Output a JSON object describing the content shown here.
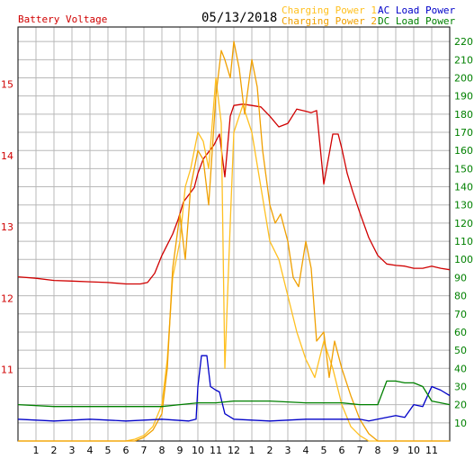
{
  "chart_data": {
    "type": "line",
    "title": "05/13/2018",
    "left_axis_label": "Battery Voltage",
    "right_axis_labels": [
      "Charging Power 1",
      "Charging Power 2",
      "AC Load Power",
      "DC Load Power"
    ],
    "x_tick_labels": [
      "1",
      "2",
      "3",
      "4",
      "5",
      "6",
      "7",
      "8",
      "9",
      "10",
      "11",
      "12",
      "1",
      "2",
      "3",
      "4",
      "5",
      "6",
      "7",
      "8",
      "9",
      "10",
      "11"
    ],
    "x_range": [
      0,
      24
    ],
    "y_left_ticks": [
      "11",
      "12",
      "13",
      "14",
      "15"
    ],
    "y_left_range": [
      10.0,
      15.8
    ],
    "y_right_ticks": [
      "10",
      "20",
      "30",
      "40",
      "50",
      "60",
      "70",
      "80",
      "90",
      "100",
      "110",
      "120",
      "130",
      "140",
      "150",
      "160",
      "170",
      "180",
      "190",
      "200",
      "210",
      "220"
    ],
    "y_right_range": [
      0,
      228
    ],
    "grid": true,
    "colors": {
      "battery": "#d00000",
      "charging1": "#ffc020",
      "charging2": "#f0a000",
      "ac_load": "#0000c8",
      "dc_load": "#008000",
      "right_axis": "#008000",
      "left_axis": "#d00000",
      "grid": "#b8b8b8"
    },
    "series": [
      {
        "name": "Battery Voltage",
        "axis": "left",
        "color": "#d00000",
        "x": [
          0,
          1,
          2,
          3,
          4,
          5,
          6,
          6.8,
          7.2,
          7.6,
          8,
          8.3,
          8.6,
          8.9,
          9.2,
          9.5,
          9.8,
          10,
          10.3,
          10.6,
          10.9,
          11.2,
          11.5,
          11.8,
          12,
          12.5,
          13,
          13.5,
          14,
          14.5,
          15,
          15.5,
          16,
          16.3,
          16.6,
          17,
          17.5,
          17.8,
          18,
          18.3,
          18.6,
          19,
          19.5,
          20,
          20.5,
          21,
          21.5,
          22,
          22.5,
          23,
          23.5,
          24
        ],
        "y": [
          12.3,
          12.28,
          12.25,
          12.24,
          12.23,
          12.22,
          12.2,
          12.2,
          12.22,
          12.35,
          12.6,
          12.75,
          12.9,
          13.1,
          13.35,
          13.45,
          13.55,
          13.75,
          13.95,
          14.05,
          14.15,
          14.3,
          13.7,
          14.55,
          14.7,
          14.72,
          14.7,
          14.68,
          14.55,
          14.4,
          14.45,
          14.65,
          14.62,
          14.6,
          14.63,
          13.6,
          14.3,
          14.3,
          14.1,
          13.75,
          13.5,
          13.2,
          12.85,
          12.6,
          12.48,
          12.46,
          12.45,
          12.42,
          12.42,
          12.45,
          12.42,
          12.4
        ]
      },
      {
        "name": "Charging Power 1",
        "axis": "right",
        "color": "#ffc020",
        "x": [
          0,
          6,
          6.5,
          7,
          7.5,
          8,
          8.3,
          8.6,
          9,
          9.3,
          9.6,
          10,
          10.3,
          10.6,
          11,
          11.3,
          11.5,
          11.8,
          12,
          12.5,
          13,
          13.5,
          14,
          14.5,
          15,
          15.5,
          16,
          16.5,
          17,
          17.5,
          18,
          18.5,
          19,
          19.5,
          24
        ],
        "y": [
          0,
          0,
          1,
          3,
          8,
          20,
          45,
          90,
          110,
          140,
          150,
          170,
          165,
          150,
          200,
          175,
          40,
          120,
          170,
          185,
          170,
          140,
          110,
          100,
          80,
          60,
          45,
          35,
          55,
          40,
          20,
          8,
          3,
          0,
          0
        ]
      },
      {
        "name": "Charging Power 2",
        "axis": "right",
        "color": "#f0a000",
        "x": [
          0,
          6.5,
          7,
          7.5,
          8,
          8.3,
          8.6,
          9,
          9.3,
          9.6,
          10,
          10.3,
          10.6,
          11,
          11.3,
          11.5,
          11.8,
          12,
          12.3,
          12.6,
          13,
          13.3,
          13.6,
          14,
          14.3,
          14.6,
          15,
          15.3,
          15.6,
          16,
          16.3,
          16.6,
          17,
          17.3,
          17.6,
          18,
          18.5,
          19,
          19.5,
          20,
          24
        ],
        "y": [
          0,
          0,
          2,
          6,
          15,
          40,
          95,
          125,
          100,
          140,
          160,
          155,
          130,
          190,
          215,
          210,
          200,
          220,
          205,
          180,
          210,
          195,
          160,
          130,
          120,
          125,
          110,
          90,
          85,
          110,
          95,
          55,
          60,
          35,
          55,
          40,
          25,
          12,
          4,
          0,
          0
        ]
      },
      {
        "name": "AC Load Power",
        "axis": "right",
        "color": "#0000c8",
        "x": [
          0,
          2,
          4,
          6,
          8,
          9.5,
          9.9,
          10,
          10.2,
          10.5,
          10.7,
          11,
          11.2,
          11.5,
          12,
          14,
          16,
          18,
          19,
          19.5,
          20,
          20.5,
          21,
          21.5,
          22,
          22.5,
          23,
          23.5,
          24
        ],
        "y": [
          12,
          11,
          12,
          11,
          12,
          11,
          12,
          30,
          47,
          47,
          30,
          28,
          27,
          15,
          12,
          11,
          12,
          12,
          12,
          11,
          12,
          13,
          14,
          13,
          20,
          19,
          30,
          28,
          25
        ]
      },
      {
        "name": "DC Load Power",
        "axis": "right",
        "color": "#008000",
        "x": [
          0,
          2,
          4,
          6,
          8,
          9,
          10,
          11,
          12,
          14,
          16,
          18,
          19,
          19.5,
          20,
          20.5,
          21,
          21.5,
          22,
          22.5,
          23,
          23.5,
          24
        ],
        "y": [
          20,
          19,
          19,
          19,
          19,
          20,
          21,
          21,
          22,
          22,
          21,
          21,
          20,
          20,
          20,
          33,
          33,
          32,
          32,
          30,
          22,
          21,
          20
        ]
      }
    ]
  }
}
